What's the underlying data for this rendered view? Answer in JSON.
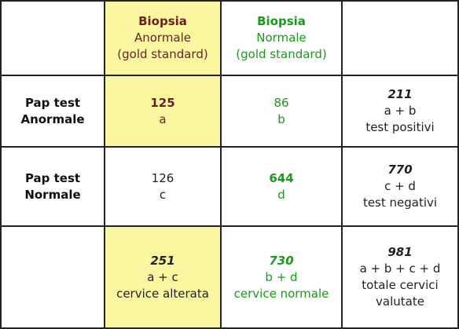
{
  "header": {
    "col_abnormal": {
      "title": "Biopsia",
      "line2": "Anormale",
      "line3": "(gold standard)"
    },
    "col_normal": {
      "title": "Biopsia",
      "line2": "Normale",
      "line3": "(gold standard)"
    }
  },
  "rows": {
    "abnormal": {
      "label1": "Pap test",
      "label2": "Anormale",
      "a_value": "125",
      "a_letter": "a",
      "b_value": "86",
      "b_letter": "b",
      "total_value": "211",
      "total_formula": "a + b",
      "total_desc": "test positivi"
    },
    "normal": {
      "label1": "Pap test",
      "label2": "Normale",
      "c_value": "126",
      "c_letter": "c",
      "d_value": "644",
      "d_letter": "d",
      "total_value": "770",
      "total_formula": "c + d",
      "total_desc": "test negativi"
    },
    "totals": {
      "ac_value": "251",
      "ac_formula": "a + c",
      "ac_desc": "cervice alterata",
      "bd_value": "730",
      "bd_formula": "b + d",
      "bd_desc": "cervice normale",
      "all_value": "981",
      "all_formula": "a + b + c + d",
      "all_desc1": "totale cervici",
      "all_desc2": "valutate"
    }
  },
  "colors": {
    "highlight": "#fbf7a1",
    "brown": "#6b1f1f",
    "green": "#1a9a1a"
  }
}
